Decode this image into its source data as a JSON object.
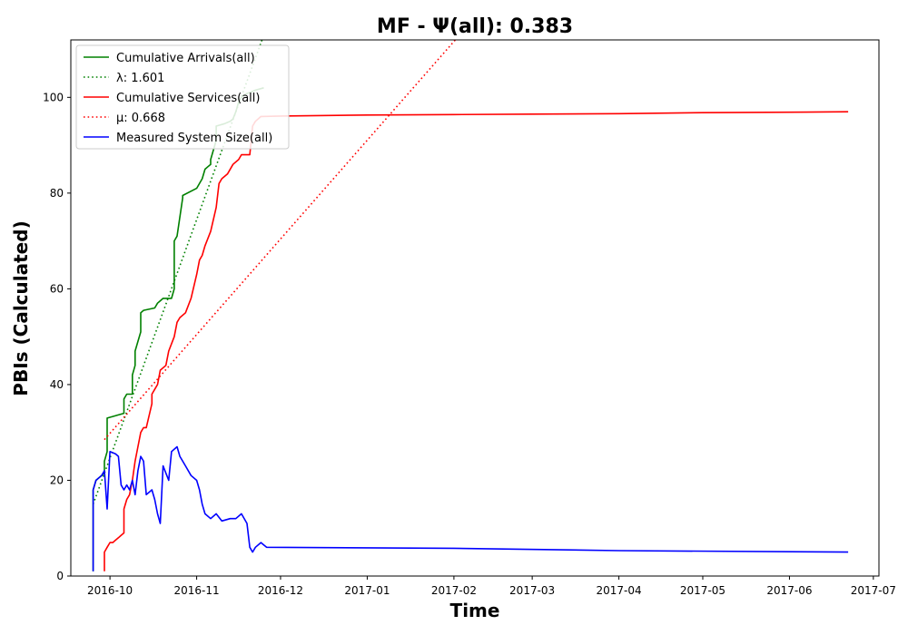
{
  "chart_data": {
    "type": "line",
    "title": "MF -  Ψ(all): 0.383",
    "xlabel": "Time",
    "ylabel": "PBIs (Calculated)",
    "xlim": [
      "2016-09-17",
      "2017-07-03"
    ],
    "ylim": [
      0,
      112
    ],
    "x_ticks": [
      "2016-10-01",
      "2016-11-01",
      "2016-12-01",
      "2017-01-01",
      "2017-02-01",
      "2017-03-01",
      "2017-04-01",
      "2017-05-01",
      "2017-06-01",
      "2017-07-01"
    ],
    "x_tick_labels": [
      "2016-10",
      "2016-11",
      "2016-12",
      "2017-01",
      "2017-02",
      "2017-03",
      "2017-04",
      "2017-05",
      "2017-06",
      "2017-07"
    ],
    "y_ticks": [
      0,
      20,
      40,
      60,
      80,
      100
    ],
    "y_tick_labels": [
      "0",
      "20",
      "40",
      "60",
      "80",
      "100"
    ],
    "legend_position": "top-left",
    "grid": false,
    "series": [
      {
        "name": "Cumulative Arrivals(all)",
        "color": "#008000",
        "style": "solid",
        "x": [
          "2016-09-25",
          "2016-09-25",
          "2016-09-26",
          "2016-09-27",
          "2016-09-28",
          "2016-09-29",
          "2016-09-29",
          "2016-09-29",
          "2016-09-30",
          "2016-09-30",
          "2016-10-06",
          "2016-10-06",
          "2016-10-07",
          "2016-10-09",
          "2016-10-09",
          "2016-10-10",
          "2016-10-10",
          "2016-10-11",
          "2016-10-12",
          "2016-10-12",
          "2016-10-13",
          "2016-10-17",
          "2016-10-18",
          "2016-10-19",
          "2016-10-20",
          "2016-10-23",
          "2016-10-24",
          "2016-10-24",
          "2016-10-25",
          "2016-10-27",
          "2016-10-27",
          "2016-11-01",
          "2016-11-03",
          "2016-11-04",
          "2016-11-05",
          "2016-11-06",
          "2016-11-06",
          "2016-11-08",
          "2016-11-08",
          "2016-11-11",
          "2016-11-13",
          "2016-11-14",
          "2016-11-15",
          "2016-11-16",
          "2016-11-17",
          "2016-11-18",
          "2016-11-19",
          "2016-11-20",
          "2016-11-22",
          "2016-11-25"
        ],
        "values": [
          1,
          18,
          20,
          20.5,
          21,
          21.5,
          22,
          24,
          26,
          33,
          34,
          37,
          38,
          38,
          42,
          44,
          47,
          49,
          51,
          55,
          55.5,
          56,
          57,
          57.5,
          58,
          58,
          60,
          70,
          71,
          79,
          79.5,
          81,
          83,
          85,
          85.5,
          86,
          87,
          91,
          94,
          94.5,
          95,
          95.5,
          97,
          99,
          100,
          100.5,
          100.8,
          101,
          101.5,
          102
        ]
      },
      {
        "name": "λ: 1.601",
        "color": "#008000",
        "style": "dotted",
        "x": [
          "2016-09-25",
          "2016-11-25"
        ],
        "values": [
          15,
          113
        ]
      },
      {
        "name": "Cumulative Services(all)",
        "color": "#ff0000",
        "style": "solid",
        "x": [
          "2016-09-29",
          "2016-09-29",
          "2016-09-30",
          "2016-10-01",
          "2016-10-02",
          "2016-10-03",
          "2016-10-04",
          "2016-10-05",
          "2016-10-06",
          "2016-10-06",
          "2016-10-07",
          "2016-10-08",
          "2016-10-09",
          "2016-10-10",
          "2016-10-11",
          "2016-10-12",
          "2016-10-13",
          "2016-10-14",
          "2016-10-16",
          "2016-10-16",
          "2016-10-17",
          "2016-10-18",
          "2016-10-19",
          "2016-10-21",
          "2016-10-22",
          "2016-10-24",
          "2016-10-25",
          "2016-10-26",
          "2016-10-28",
          "2016-10-30",
          "2016-11-01",
          "2016-11-02",
          "2016-11-03",
          "2016-11-04",
          "2016-11-06",
          "2016-11-08",
          "2016-11-09",
          "2016-11-10",
          "2016-11-12",
          "2016-11-14",
          "2016-11-16",
          "2016-11-17",
          "2016-11-20",
          "2016-11-21",
          "2016-11-22",
          "2016-11-23",
          "2016-11-24",
          "2016-12-01",
          "2017-01-01",
          "2017-02-01",
          "2017-03-01",
          "2017-04-01",
          "2017-05-01",
          "2017-06-01",
          "2017-06-22"
        ],
        "values": [
          1,
          5,
          6,
          7,
          7,
          7.5,
          8,
          8.5,
          9,
          14,
          16,
          17,
          20,
          24,
          27,
          30,
          31,
          31,
          36,
          38,
          39,
          40,
          43,
          44,
          47,
          50,
          53,
          54,
          55,
          58,
          63,
          66,
          67,
          69,
          72,
          77,
          82,
          83,
          84,
          86,
          87,
          88,
          88,
          94,
          95,
          95.5,
          96,
          96.1,
          96.3,
          96.4,
          96.5,
          96.6,
          96.8,
          96.9,
          97
        ]
      },
      {
        "name": "μ: 0.668",
        "color": "#ff0000",
        "style": "dotted",
        "x": [
          "2016-09-29",
          "2017-02-03"
        ],
        "values": [
          28.5,
          113
        ]
      },
      {
        "name": "Measured System Size(all)",
        "color": "#0000ff",
        "style": "solid",
        "x": [
          "2016-09-25",
          "2016-09-25",
          "2016-09-26",
          "2016-09-28",
          "2016-09-29",
          "2016-09-30",
          "2016-10-01",
          "2016-10-03",
          "2016-10-04",
          "2016-10-05",
          "2016-10-06",
          "2016-10-07",
          "2016-10-08",
          "2016-10-09",
          "2016-10-10",
          "2016-10-11",
          "2016-10-12",
          "2016-10-13",
          "2016-10-14",
          "2016-10-16",
          "2016-10-17",
          "2016-10-18",
          "2016-10-19",
          "2016-10-20",
          "2016-10-22",
          "2016-10-23",
          "2016-10-25",
          "2016-10-26",
          "2016-10-28",
          "2016-10-30",
          "2016-11-01",
          "2016-11-02",
          "2016-11-03",
          "2016-11-04",
          "2016-11-06",
          "2016-11-08",
          "2016-11-10",
          "2016-11-13",
          "2016-11-15",
          "2016-11-17",
          "2016-11-19",
          "2016-11-20",
          "2016-11-21",
          "2016-11-22",
          "2016-11-24",
          "2016-11-25",
          "2016-11-26",
          "2017-02-01",
          "2017-04-01",
          "2017-06-22"
        ],
        "values": [
          1,
          18,
          20,
          21,
          22,
          14,
          26,
          25.5,
          25,
          19,
          18,
          19,
          18,
          20,
          17,
          22,
          25,
          24,
          17,
          18,
          16,
          13,
          11,
          23,
          20,
          26,
          27,
          25,
          23,
          21,
          20,
          18,
          15,
          13,
          12,
          13,
          11.5,
          12,
          12,
          13,
          11,
          6,
          5,
          6,
          7,
          6.5,
          6,
          5.8,
          5.3,
          5
        ]
      }
    ]
  }
}
